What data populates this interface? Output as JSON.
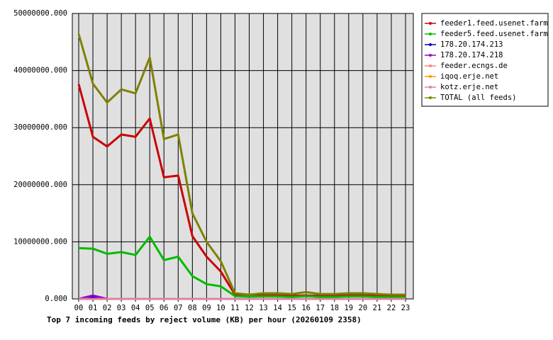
{
  "chart_data": {
    "type": "line",
    "title": "Top 7 incoming feeds by reject volume (KB) per hour (20260109 2358)",
    "categories": [
      "00",
      "01",
      "02",
      "03",
      "04",
      "05",
      "06",
      "07",
      "08",
      "09",
      "10",
      "11",
      "12",
      "13",
      "14",
      "15",
      "16",
      "17",
      "18",
      "19",
      "20",
      "21",
      "22",
      "23"
    ],
    "ylim": [
      0,
      50000000
    ],
    "yticks": [
      {
        "value": 0,
        "label": "0.000"
      },
      {
        "value": 10000000,
        "label": "10000000.000"
      },
      {
        "value": 20000000,
        "label": "20000000.000"
      },
      {
        "value": 30000000,
        "label": "30000000.000"
      },
      {
        "value": 40000000,
        "label": "40000000.000"
      },
      {
        "value": 50000000,
        "label": "50000000.000"
      }
    ],
    "grid": true,
    "legend": "right",
    "series": [
      {
        "name": "feeder1.feed.usenet.farm",
        "color": "#cc0000",
        "values": [
          37600000,
          28400000,
          26700000,
          28800000,
          28400000,
          31600000,
          21300000,
          21600000,
          11000000,
          7400000,
          4800000,
          750000,
          600000,
          600000,
          600000,
          550000,
          600000,
          550000,
          550000,
          600000,
          600000,
          550000,
          500000,
          500000
        ]
      },
      {
        "name": "feeder5.feed.usenet.farm",
        "color": "#00bb00",
        "values": [
          8900000,
          8800000,
          7900000,
          8200000,
          7700000,
          10900000,
          6800000,
          7400000,
          4000000,
          2600000,
          2200000,
          500000,
          400000,
          450000,
          450000,
          350000,
          500000,
          350000,
          350000,
          450000,
          450000,
          350000,
          300000,
          300000
        ]
      },
      {
        "name": "178.20.174.213",
        "color": "#0000cc",
        "values": [
          0,
          400000,
          0,
          0,
          0,
          0,
          0,
          0,
          0,
          0,
          0,
          0,
          0,
          0,
          0,
          0,
          0,
          0,
          0,
          0,
          0,
          0,
          0,
          0
        ]
      },
      {
        "name": "178.20.174.218",
        "color": "#9900cc",
        "values": [
          0,
          600000,
          0,
          0,
          0,
          0,
          0,
          0,
          0,
          0,
          0,
          0,
          0,
          0,
          0,
          0,
          0,
          0,
          0,
          0,
          0,
          0,
          0,
          0
        ]
      },
      {
        "name": "feeder.ecngs.de",
        "color": "#ff8080",
        "values": [
          0,
          0,
          0,
          0,
          0,
          0,
          0,
          0,
          0,
          0,
          0,
          0,
          0,
          0,
          0,
          0,
          0,
          0,
          0,
          0,
          0,
          0,
          0,
          0
        ]
      },
      {
        "name": "iqoq.erje.net",
        "color": "#ff9900",
        "values": [
          0,
          0,
          0,
          0,
          0,
          0,
          0,
          0,
          0,
          0,
          0,
          0,
          0,
          0,
          0,
          0,
          0,
          0,
          0,
          0,
          0,
          0,
          0,
          0
        ]
      },
      {
        "name": "kotz.erje.net",
        "color": "#e080a0",
        "values": [
          0,
          0,
          0,
          0,
          0,
          0,
          0,
          0,
          0,
          0,
          0,
          0,
          0,
          0,
          0,
          0,
          0,
          0,
          0,
          0,
          0,
          0,
          0,
          0
        ]
      },
      {
        "name": "TOTAL (all feeds)",
        "color": "#808000",
        "values": [
          46400000,
          37700000,
          34400000,
          36700000,
          36000000,
          42300000,
          28000000,
          28800000,
          15000000,
          10000000,
          6600000,
          1000000,
          750000,
          1000000,
          1000000,
          850000,
          1200000,
          850000,
          850000,
          1000000,
          1000000,
          850000,
          750000,
          750000
        ]
      }
    ]
  }
}
